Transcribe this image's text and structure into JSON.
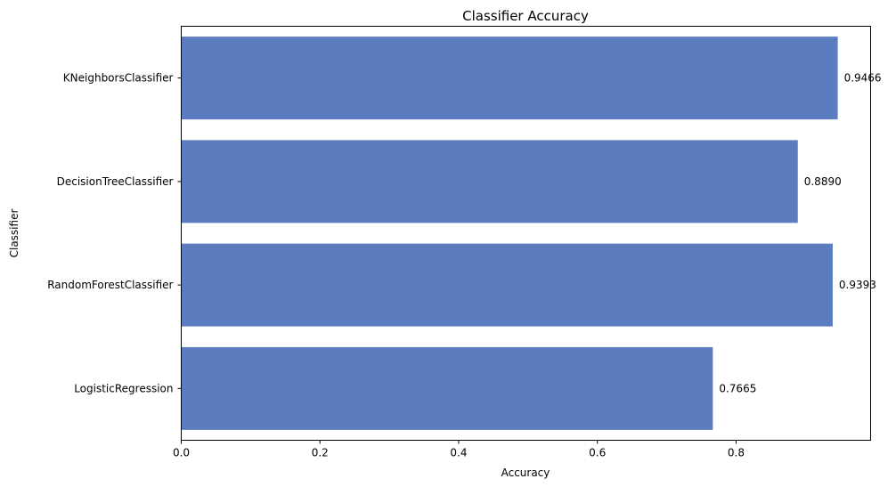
{
  "chart_data": {
    "type": "bar",
    "orientation": "horizontal",
    "title": "Classifier Accuracy",
    "xlabel": "Accuracy",
    "ylabel": "Classifier",
    "categories": [
      "KNeighborsClassifier",
      "DecisionTreeClassifier",
      "RandomForestClassifier",
      "LogisticRegression"
    ],
    "values": [
      0.9466,
      0.889,
      0.9393,
      0.7665
    ],
    "value_labels": [
      "0.9466",
      "0.8890",
      "0.9393",
      "0.7665"
    ],
    "xlim": [
      0,
      0.994
    ],
    "xticks": [
      0.0,
      0.2,
      0.4,
      0.6,
      0.8
    ],
    "xtick_labels": [
      "0.0",
      "0.2",
      "0.4",
      "0.6",
      "0.8"
    ],
    "grid": false,
    "bar_color": "#5b7dbf"
  }
}
